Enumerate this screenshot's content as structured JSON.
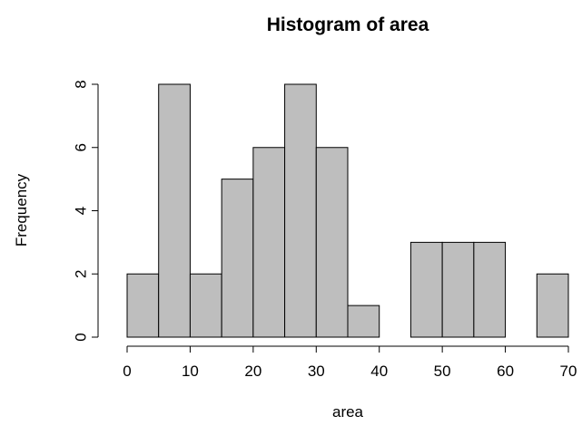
{
  "chart_data": {
    "type": "bar",
    "title": "Histogram of area",
    "xlabel": "area",
    "ylabel": "Frequency",
    "bins": [
      {
        "start": 0,
        "end": 5,
        "count": 2
      },
      {
        "start": 5,
        "end": 10,
        "count": 8
      },
      {
        "start": 10,
        "end": 15,
        "count": 2
      },
      {
        "start": 15,
        "end": 20,
        "count": 5
      },
      {
        "start": 20,
        "end": 25,
        "count": 6
      },
      {
        "start": 25,
        "end": 30,
        "count": 8
      },
      {
        "start": 30,
        "end": 35,
        "count": 6
      },
      {
        "start": 35,
        "end": 40,
        "count": 1
      },
      {
        "start": 40,
        "end": 45,
        "count": 0
      },
      {
        "start": 45,
        "end": 50,
        "count": 3
      },
      {
        "start": 50,
        "end": 55,
        "count": 3
      },
      {
        "start": 55,
        "end": 60,
        "count": 3
      },
      {
        "start": 60,
        "end": 65,
        "count": 0
      },
      {
        "start": 65,
        "end": 70,
        "count": 2
      }
    ],
    "x_ticks": [
      "0",
      "10",
      "20",
      "30",
      "40",
      "50",
      "60",
      "70"
    ],
    "y_ticks": [
      "0",
      "2",
      "4",
      "6",
      "8"
    ],
    "xlim": [
      0,
      70
    ],
    "ylim": [
      0,
      8
    ],
    "grid": false,
    "bar_color": "#bebebe",
    "edge_color": "#000000"
  }
}
